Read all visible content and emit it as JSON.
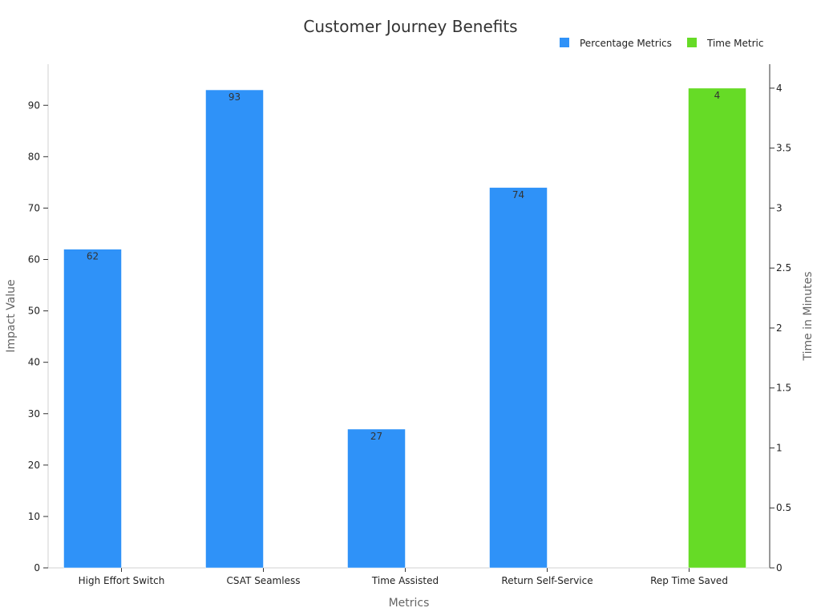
{
  "chart_data": {
    "type": "bar",
    "title": "Customer Journey Benefits",
    "xlabel": "Metrics",
    "ylabel": "Impact Value",
    "y2label": "Time in Minutes",
    "categories": [
      "High Effort Switch",
      "CSAT Seamless",
      "Time Assisted",
      "Return Self-Service",
      "Rep Time Saved"
    ],
    "series": [
      {
        "name": "Percentage Metrics",
        "axis": "left",
        "color": "#2f92f8",
        "values": [
          62,
          93,
          27,
          74,
          null
        ],
        "labels": [
          "62",
          "93",
          "27",
          "74",
          ""
        ]
      },
      {
        "name": "Time Metric",
        "axis": "right",
        "color": "#66db26",
        "values": [
          null,
          null,
          null,
          null,
          4
        ],
        "labels": [
          "",
          "",
          "",
          "",
          "4"
        ]
      }
    ],
    "ylim": [
      0,
      98
    ],
    "yticks": [
      0,
      10,
      20,
      30,
      40,
      50,
      60,
      70,
      80,
      90
    ],
    "y2lim": [
      0,
      4.2
    ],
    "y2ticks": [
      0,
      0.5,
      1,
      1.5,
      2,
      2.5,
      3,
      3.5,
      4
    ],
    "y2tick_labels": [
      "0",
      "0.5",
      "1",
      "1.5",
      "2",
      "2.5",
      "3",
      "3.5",
      "4"
    ],
    "legend_position": "top-right",
    "grid": false
  }
}
